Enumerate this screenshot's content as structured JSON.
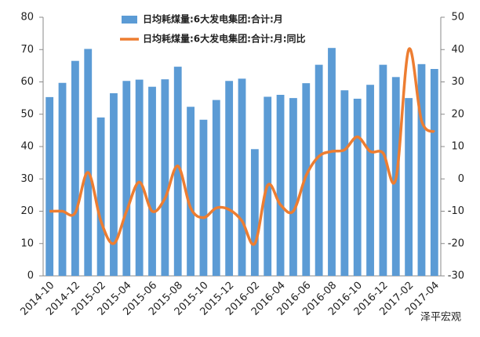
{
  "chart_data": {
    "type": "bar_line",
    "categories": [
      "2014-10",
      null,
      "2014-12",
      null,
      "2015-02",
      null,
      "2015-04",
      null,
      "2015-06",
      null,
      "2015-08",
      null,
      "2015-10",
      null,
      "2015-12",
      null,
      "2016-02",
      null,
      "2016-04",
      null,
      "2016-06",
      null,
      "2016-08",
      null,
      "2016-10",
      null,
      "2016-12",
      null,
      "2017-02",
      null,
      "2017-04"
    ],
    "series": [
      {
        "name": "日均耗煤量:6大发电集团:合计:月",
        "type": "bar",
        "color": "#5b9bd5",
        "values": [
          55.3,
          59.7,
          66.5,
          70.2,
          49,
          56.5,
          60.3,
          60.7,
          58.5,
          60.8,
          64.7,
          52.3,
          48.3,
          54.4,
          60.3,
          61,
          39.2,
          55.4,
          56,
          55,
          59.6,
          65.3,
          70.5,
          57.4,
          54.8,
          59.1,
          65.3,
          61.5,
          55,
          65.5,
          64
        ]
      },
      {
        "name": "日均耗煤量:6大发电集团:合计:月:同比",
        "type": "line",
        "axis": "y2",
        "color": "#ed7d31",
        "values": [
          -10,
          -10,
          -10.5,
          2,
          -13,
          -20,
          -10,
          -1,
          -10,
          -6,
          4,
          -9,
          -12,
          -9,
          -9.5,
          -13,
          -20,
          -2,
          -8,
          -10,
          1,
          7,
          8.5,
          9,
          13,
          8.5,
          8,
          0,
          40,
          18,
          14.5
        ]
      }
    ],
    "ylim": [
      0,
      80
    ],
    "yticks": [
      0,
      10,
      20,
      30,
      40,
      50,
      60,
      70,
      80
    ],
    "y2lim": [
      -30,
      50
    ],
    "y2ticks": [
      -30,
      -20,
      -10,
      0,
      10,
      20,
      30,
      40,
      50
    ],
    "watermark": "泽平宏观"
  }
}
